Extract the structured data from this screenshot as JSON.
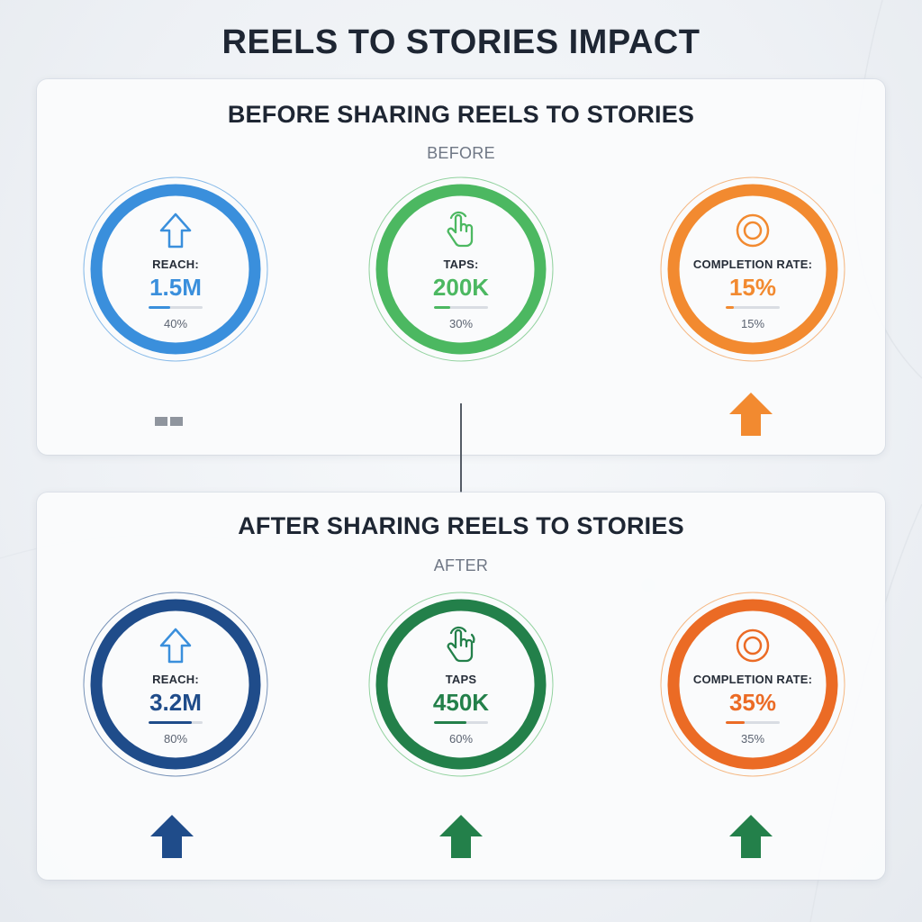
{
  "title": "REELS TO STORIES IMPACT",
  "before": {
    "heading": "BEFORE SHARING REELS TO STORIES",
    "tag": "BEFORE",
    "metrics": [
      {
        "label": "REACH:",
        "value": "1.5M",
        "percent": "40%",
        "fill": 0.4,
        "color": "#3a8fdc",
        "icon": "arrow-up-outline-icon"
      },
      {
        "label": "TAPS:",
        "value": "200K",
        "percent": "30%",
        "fill": 0.3,
        "color": "#4cb861",
        "icon": "hand-tap-icon"
      },
      {
        "label": "COMPLETION RATE:",
        "value": "15%",
        "percent": "15%",
        "fill": 0.15,
        "color": "#f28a30",
        "icon": "target-icon"
      }
    ]
  },
  "after": {
    "heading": "AFTER SHARING REELS TO STORIES",
    "tag": "AFTER",
    "metrics": [
      {
        "label": "REACH:",
        "value": "3.2M",
        "percent": "80%",
        "fill": 0.8,
        "color": "#1f4c8a",
        "icon": "arrow-up-outline-icon"
      },
      {
        "label": "TAPS",
        "value": "450K",
        "percent": "60%",
        "fill": 0.6,
        "color": "#23804a",
        "icon": "hand-tap-icon"
      },
      {
        "label": "COMPLETION RATE:",
        "value": "35%",
        "percent": "35%",
        "fill": 0.35,
        "color": "#eb6b25",
        "icon": "target-icon"
      }
    ]
  }
}
